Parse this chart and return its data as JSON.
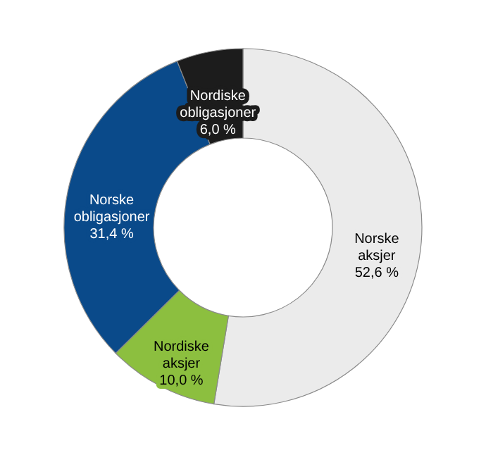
{
  "chart_data": {
    "type": "donut",
    "categories": [
      "Norske aksjer",
      "Nordiske aksjer",
      "Norske obligasjoner",
      "Nordiske obligasjoner"
    ],
    "values": [
      52.6,
      10.0,
      31.4,
      6.0
    ],
    "colors": [
      "#ebebeb",
      "#8cbf3f",
      "#0a4a8a",
      "#1c1c1c"
    ],
    "value_labels": [
      "52,6 %",
      "10,0 %",
      "31,4 %",
      "6,0 %"
    ]
  }
}
